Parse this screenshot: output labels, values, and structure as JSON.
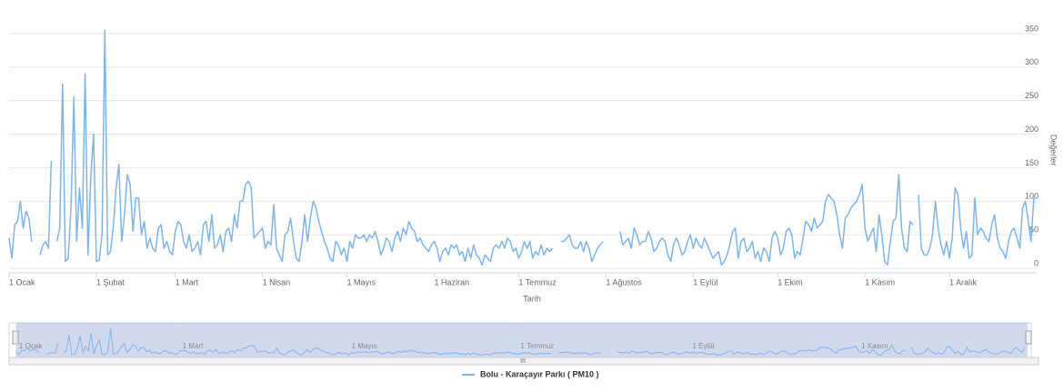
{
  "chart_data": {
    "type": "line",
    "y_axis_title": "Değerler",
    "x_axis_title": "Tarih",
    "xlim": [
      0,
      365
    ],
    "xticks": [
      {
        "value": 0,
        "label": "1 Ocak"
      },
      {
        "value": 31,
        "label": "1 Şubat"
      },
      {
        "value": 59,
        "label": "1 Mart"
      },
      {
        "value": 90,
        "label": "1 Nisan"
      },
      {
        "value": 120,
        "label": "1 Mayıs"
      },
      {
        "value": 151,
        "label": "1 Haziran"
      },
      {
        "value": 181,
        "label": "1 Temmuz"
      },
      {
        "value": 212,
        "label": "1 Ağustos"
      },
      {
        "value": 243,
        "label": "1 Eylül"
      },
      {
        "value": 273,
        "label": "1 Ekim"
      },
      {
        "value": 304,
        "label": "1 Kasım"
      },
      {
        "value": 334,
        "label": "1 Aralık"
      }
    ],
    "ylim": [
      0,
      400
    ],
    "yticks": [
      0,
      50,
      100,
      150,
      200,
      250,
      300,
      350
    ],
    "grid": true,
    "legend": "bottom",
    "series": [
      {
        "name": "Bolu - Karaçayır Parkı ( PM10 )",
        "color": "#7cb5ec",
        "values": [
          45,
          15,
          65,
          70,
          100,
          60,
          85,
          75,
          40,
          null,
          null,
          20,
          35,
          40,
          30,
          160,
          null,
          40,
          60,
          275,
          10,
          15,
          90,
          255,
          40,
          120,
          60,
          290,
          20,
          135,
          200,
          10,
          12,
          50,
          355,
          20,
          25,
          60,
          120,
          155,
          40,
          80,
          140,
          125,
          55,
          105,
          105,
          50,
          70,
          30,
          45,
          30,
          25,
          60,
          65,
          30,
          40,
          25,
          20,
          55,
          70,
          65,
          40,
          30,
          50,
          25,
          30,
          40,
          20,
          65,
          70,
          40,
          80,
          30,
          35,
          50,
          25,
          55,
          60,
          40,
          80,
          60,
          100,
          100,
          125,
          130,
          120,
          45,
          50,
          55,
          60,
          30,
          40,
          35,
          95,
          30,
          20,
          10,
          50,
          55,
          75,
          40,
          15,
          10,
          40,
          80,
          40,
          75,
          100,
          90,
          70,
          55,
          40,
          30,
          15,
          10,
          40,
          35,
          20,
          30,
          10,
          40,
          30,
          50,
          45,
          45,
          50,
          40,
          50,
          45,
          55,
          40,
          20,
          30,
          45,
          40,
          25,
          45,
          55,
          40,
          60,
          50,
          70,
          60,
          55,
          40,
          45,
          35,
          30,
          25,
          35,
          40,
          30,
          10,
          25,
          30,
          20,
          35,
          30,
          35,
          20,
          25,
          10,
          30,
          15,
          35,
          20,
          15,
          5,
          20,
          15,
          10,
          30,
          35,
          30,
          40,
          30,
          45,
          40,
          25,
          30,
          15,
          25,
          40,
          30,
          40,
          15,
          25,
          20,
          35,
          20,
          30,
          25,
          30,
          null,
          null,
          40,
          40,
          45,
          50,
          35,
          30,
          30,
          40,
          25,
          40,
          30,
          10,
          20,
          30,
          35,
          40,
          null,
          null,
          null,
          null,
          null,
          55,
          35,
          40,
          45,
          30,
          60,
          50,
          35,
          40,
          40,
          55,
          45,
          25,
          30,
          40,
          45,
          40,
          20,
          10,
          35,
          45,
          35,
          20,
          25,
          40,
          50,
          30,
          45,
          35,
          30,
          45,
          35,
          25,
          15,
          20,
          25,
          5,
          10,
          20,
          35,
          55,
          60,
          15,
          40,
          45,
          25,
          30,
          40,
          15,
          25,
          10,
          30,
          25,
          10,
          45,
          55,
          45,
          20,
          30,
          55,
          60,
          50,
          15,
          25,
          20,
          45,
          70,
          65,
          55,
          75,
          60,
          65,
          70,
          100,
          110,
          105,
          100,
          80,
          50,
          30,
          75,
          80,
          90,
          95,
          100,
          110,
          125,
          60,
          40,
          50,
          60,
          25,
          80,
          50,
          10,
          5,
          40,
          70,
          75,
          140,
          60,
          30,
          25,
          70,
          65,
          null,
          110,
          30,
          20,
          20,
          30,
          50,
          100,
          60,
          35,
          20,
          40,
          15,
          45,
          120,
          110,
          60,
          30,
          55,
          15,
          20,
          105,
          50,
          60,
          55,
          45,
          40,
          65,
          80,
          45,
          30,
          25,
          15,
          40,
          55,
          60,
          45,
          30,
          90,
          100,
          70,
          40,
          105
        ]
      }
    ]
  }
}
